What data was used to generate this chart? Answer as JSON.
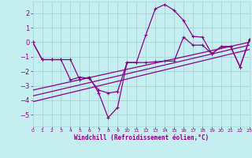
{
  "xlabel": "Windchill (Refroidissement éolien,°C)",
  "bg_color": "#c5eef0",
  "grid_color": "#a8d8dc",
  "line_color": "#8b008b",
  "xlim": [
    0,
    23
  ],
  "ylim": [
    -5.8,
    2.8
  ],
  "xticks": [
    0,
    1,
    2,
    3,
    4,
    5,
    6,
    7,
    8,
    9,
    10,
    11,
    12,
    13,
    14,
    15,
    16,
    17,
    18,
    19,
    20,
    21,
    22,
    23
  ],
  "yticks": [
    -5,
    -4,
    -3,
    -2,
    -1,
    0,
    1,
    2
  ],
  "series1_x": [
    0,
    1,
    2,
    3,
    4,
    5,
    6,
    7,
    8,
    9,
    10,
    11,
    12,
    13,
    14,
    15,
    16,
    17,
    18,
    19,
    20,
    21,
    22,
    23
  ],
  "series1_y": [
    0.0,
    -1.2,
    -1.2,
    -1.2,
    -1.2,
    -2.6,
    -2.4,
    -3.5,
    -5.2,
    -4.5,
    -1.4,
    -1.4,
    0.5,
    2.3,
    2.6,
    2.2,
    1.5,
    0.4,
    0.35,
    -0.8,
    -0.3,
    -0.3,
    -1.7,
    0.2
  ],
  "series2_x": [
    0,
    1,
    2,
    3,
    4,
    5,
    6,
    7,
    8,
    9,
    10,
    11,
    12,
    13,
    14,
    15,
    16,
    17,
    18,
    19,
    20,
    21,
    22,
    23
  ],
  "series2_y": [
    0.0,
    -1.2,
    -1.2,
    -1.2,
    -2.6,
    -2.4,
    -2.5,
    -3.3,
    -3.5,
    -3.4,
    -1.4,
    -1.4,
    -1.4,
    -1.35,
    -1.3,
    -1.3,
    0.35,
    -0.2,
    -0.2,
    -0.8,
    -0.3,
    -0.3,
    -1.7,
    0.2
  ],
  "trend1_x": [
    0,
    23
  ],
  "trend1_y": [
    -4.1,
    -0.5
  ],
  "trend2_x": [
    0,
    23
  ],
  "trend2_y": [
    -3.7,
    -0.2
  ],
  "trend3_x": [
    0,
    23
  ],
  "trend3_y": [
    -3.3,
    0.0
  ]
}
